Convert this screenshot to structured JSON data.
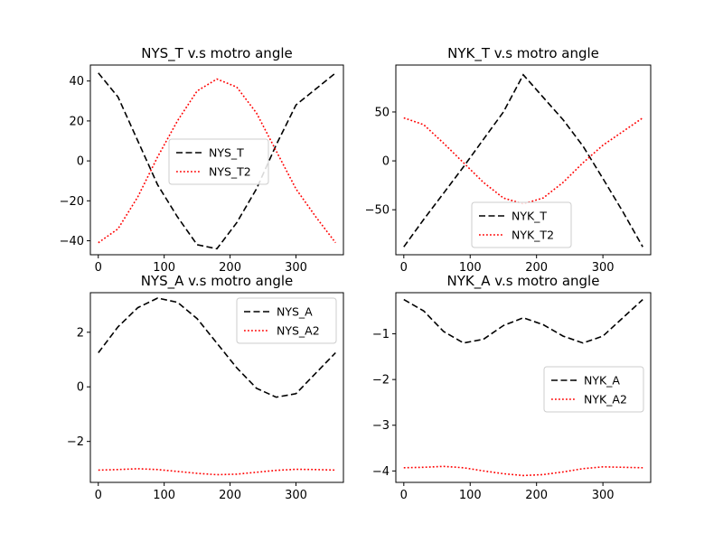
{
  "chart_data": [
    {
      "type": "line",
      "title": "NYS_T v.s motro angle",
      "xlim": [
        -12,
        372
      ],
      "ylim": [
        -47,
        48
      ],
      "xticks": [
        0,
        100,
        200,
        300
      ],
      "yticks": [
        -40,
        -20,
        0,
        20,
        40
      ],
      "legend": "center",
      "series": [
        {
          "name": "NYS_T",
          "color": "#000000",
          "style": "dashed",
          "x": [
            0,
            30,
            60,
            90,
            120,
            150,
            180,
            210,
            240,
            270,
            300,
            330,
            360
          ],
          "y": [
            44,
            32,
            10,
            -12,
            -28,
            -42,
            -44,
            -31,
            -14,
            8,
            28,
            36,
            44
          ]
        },
        {
          "name": "NYS_T2",
          "color": "#ff0000",
          "style": "dotted",
          "x": [
            0,
            30,
            60,
            90,
            120,
            150,
            180,
            210,
            240,
            270,
            300,
            330,
            360
          ],
          "y": [
            -41,
            -34,
            -18,
            2,
            20,
            35,
            41,
            37,
            24,
            5,
            -14,
            -28,
            -41
          ]
        }
      ]
    },
    {
      "type": "line",
      "title": "NYK_T v.s motro angle",
      "xlim": [
        -12,
        372
      ],
      "ylim": [
        -96,
        98
      ],
      "xticks": [
        0,
        100,
        200,
        300
      ],
      "yticks": [
        -50,
        0,
        50
      ],
      "legend": "lower center",
      "series": [
        {
          "name": "NYK_T",
          "color": "#000000",
          "style": "dashed",
          "x": [
            0,
            30,
            60,
            90,
            120,
            150,
            180,
            210,
            240,
            270,
            300,
            330,
            360
          ],
          "y": [
            -88,
            -60,
            -33,
            -6,
            22,
            50,
            88,
            65,
            42,
            15,
            -18,
            -52,
            -88
          ]
        },
        {
          "name": "NYK_T2",
          "color": "#ff0000",
          "style": "dotted",
          "x": [
            0,
            30,
            60,
            90,
            120,
            150,
            180,
            210,
            240,
            270,
            300,
            330,
            360
          ],
          "y": [
            44,
            37,
            18,
            -2,
            -22,
            -38,
            -44,
            -38,
            -22,
            -2,
            16,
            30,
            44
          ]
        }
      ]
    },
    {
      "type": "line",
      "title": "NYS_A v.s motro angle",
      "xlim": [
        -12,
        372
      ],
      "ylim": [
        -3.5,
        3.45
      ],
      "xticks": [
        0,
        100,
        200,
        300
      ],
      "yticks": [
        -2,
        0,
        2
      ],
      "legend": "upper right",
      "series": [
        {
          "name": "NYS_A",
          "color": "#000000",
          "style": "dashed",
          "x": [
            0,
            30,
            60,
            90,
            120,
            150,
            180,
            210,
            240,
            270,
            300,
            330,
            360
          ],
          "y": [
            1.25,
            2.2,
            2.9,
            3.25,
            3.1,
            2.5,
            1.6,
            0.7,
            -0.05,
            -0.38,
            -0.25,
            0.5,
            1.25
          ]
        },
        {
          "name": "NYS_A2",
          "color": "#ff0000",
          "style": "dotted",
          "x": [
            0,
            30,
            60,
            90,
            120,
            150,
            180,
            210,
            240,
            270,
            300,
            330,
            360
          ],
          "y": [
            -3.05,
            -3.03,
            -3.0,
            -3.03,
            -3.1,
            -3.17,
            -3.22,
            -3.2,
            -3.13,
            -3.06,
            -3.02,
            -3.03,
            -3.05
          ]
        }
      ]
    },
    {
      "type": "line",
      "title": "NYK_A v.s motro angle",
      "xlim": [
        -12,
        372
      ],
      "ylim": [
        -4.25,
        -0.1
      ],
      "xticks": [
        0,
        100,
        200,
        300
      ],
      "yticks": [
        -4,
        -3,
        -2,
        -1
      ],
      "legend": "center right",
      "series": [
        {
          "name": "NYK_A",
          "color": "#000000",
          "style": "dashed",
          "x": [
            0,
            30,
            60,
            90,
            120,
            150,
            180,
            210,
            240,
            270,
            300,
            330,
            360
          ],
          "y": [
            -0.25,
            -0.5,
            -0.95,
            -1.2,
            -1.12,
            -0.82,
            -0.65,
            -0.8,
            -1.05,
            -1.2,
            -1.05,
            -0.65,
            -0.25
          ]
        },
        {
          "name": "NYK_A2",
          "color": "#ff0000",
          "style": "dotted",
          "x": [
            0,
            30,
            60,
            90,
            120,
            150,
            180,
            210,
            240,
            270,
            300,
            330,
            360
          ],
          "y": [
            -3.93,
            -3.92,
            -3.9,
            -3.93,
            -4.0,
            -4.06,
            -4.1,
            -4.08,
            -4.02,
            -3.95,
            -3.91,
            -3.92,
            -3.93
          ]
        }
      ]
    }
  ]
}
